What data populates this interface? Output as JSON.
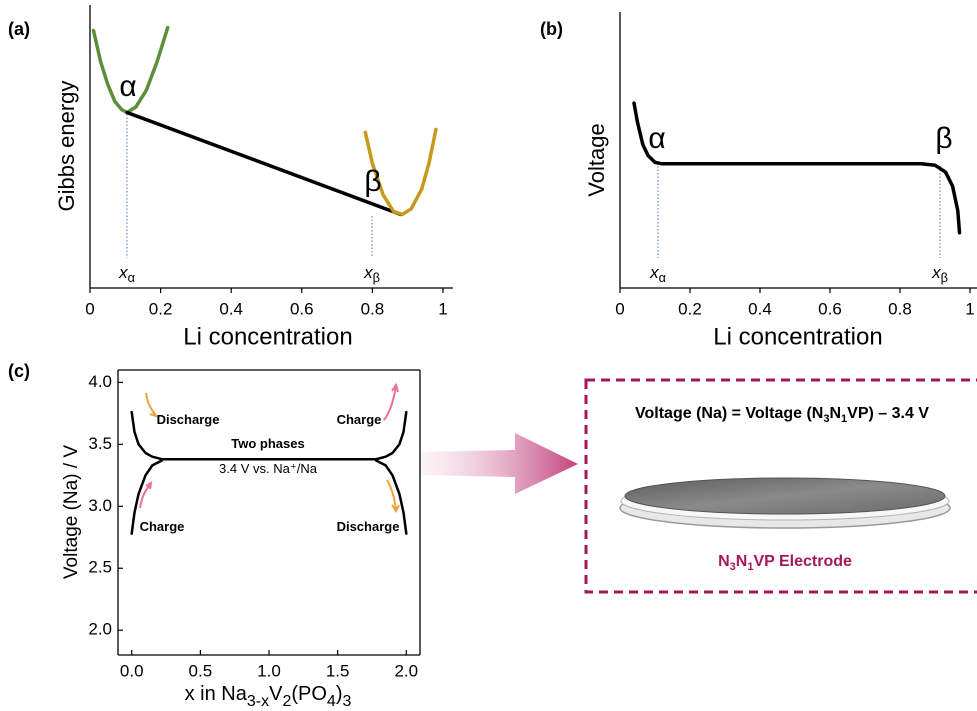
{
  "chart_data": [
    {
      "type": "line",
      "panel_label": "(a)",
      "xlabel": "Li concentration",
      "ylabel": "Gibbs energy",
      "xlim": [
        0,
        1
      ],
      "ylim": [
        0,
        1
      ],
      "xticks": [
        0,
        0.2,
        0.4,
        0.6,
        0.8,
        1
      ],
      "series": [
        {
          "color": "#5b8f3a",
          "x": [
            0.01,
            0.03,
            0.05,
            0.07,
            0.09,
            0.105,
            0.13,
            0.16,
            0.19,
            0.22
          ],
          "values": [
            0.91,
            0.8,
            0.72,
            0.66,
            0.63,
            0.62,
            0.64,
            0.7,
            0.8,
            0.92
          ]
        },
        {
          "color": "#000000",
          "x": [
            0.105,
            0.88
          ],
          "values": [
            0.62,
            0.26
          ]
        },
        {
          "color": "#c8991a",
          "x": [
            0.78,
            0.8,
            0.83,
            0.86,
            0.885,
            0.91,
            0.94,
            0.96,
            0.98
          ],
          "values": [
            0.55,
            0.44,
            0.33,
            0.27,
            0.26,
            0.28,
            0.35,
            0.44,
            0.56
          ]
        }
      ],
      "annotations": [
        {
          "text": "α"
        },
        {
          "text": "β"
        },
        {
          "text": "x",
          "subscript": "α"
        },
        {
          "text": "x",
          "subscript": "β"
        }
      ]
    },
    {
      "type": "line",
      "panel_label": "(b)",
      "xlabel": "Li concentration",
      "ylabel": "Voltage",
      "xlim": [
        0,
        1
      ],
      "ylim": [
        0,
        1
      ],
      "xticks": [
        0,
        0.2,
        0.4,
        0.6,
        0.8,
        1
      ],
      "series": [
        {
          "color": "#000000",
          "x": [
            0.04,
            0.05,
            0.065,
            0.08,
            0.1,
            0.12,
            0.86,
            0.9,
            0.93,
            0.95,
            0.965,
            0.97
          ],
          "values": [
            0.67,
            0.6,
            0.52,
            0.48,
            0.455,
            0.45,
            0.45,
            0.445,
            0.42,
            0.37,
            0.28,
            0.2
          ]
        }
      ],
      "annotations": [
        {
          "text": "α"
        },
        {
          "text": "β"
        },
        {
          "text": "x",
          "subscript": "α"
        },
        {
          "text": "x",
          "subscript": "β"
        }
      ]
    },
    {
      "type": "line",
      "panel_label": "(c)",
      "ylabel": "Voltage (Na) / V",
      "xlabel": [
        {
          "text": "x in Na"
        },
        {
          "text": "3-x",
          "sub": true
        },
        {
          "text": "V"
        },
        {
          "text": "2",
          "sub": true
        },
        {
          "text": "(PO"
        },
        {
          "text": "4",
          "sub": true
        },
        {
          "text": ")"
        },
        {
          "text": "3",
          "sub": true
        }
      ],
      "xlim": [
        -0.1,
        2.1
      ],
      "ylim": [
        1.8,
        4.1
      ],
      "xticks": [
        {
          "value": 0,
          "label": "0.0"
        },
        {
          "value": 0.5,
          "label": "0.5"
        },
        {
          "value": 1,
          "label": "1.0"
        },
        {
          "value": 1.5,
          "label": "1.5"
        },
        {
          "value": 2,
          "label": "2.0"
        }
      ],
      "yticks": [
        {
          "value": 2,
          "label": "2.0"
        },
        {
          "value": 2.5,
          "label": "2.5"
        },
        {
          "value": 3,
          "label": "3.0"
        },
        {
          "value": 3.5,
          "label": "3.5"
        },
        {
          "value": 4,
          "label": "4.0"
        }
      ],
      "series": [
        {
          "color": "#000000",
          "x": [
            0.0,
            0.02,
            0.05,
            0.1,
            0.15,
            0.22
          ],
          "values": [
            3.76,
            3.6,
            3.5,
            3.43,
            3.4,
            3.38
          ]
        },
        {
          "color": "#000000",
          "x": [
            0.0,
            0.02,
            0.05,
            0.1,
            0.15,
            0.22
          ],
          "values": [
            2.78,
            2.95,
            3.1,
            3.25,
            3.33,
            3.37
          ]
        },
        {
          "color": "#000000",
          "x": [
            0.22,
            1.78
          ],
          "values": [
            3.38,
            3.38
          ]
        },
        {
          "color": "#000000",
          "x": [
            1.78,
            1.85,
            1.9,
            1.95,
            1.98,
            2.0
          ],
          "values": [
            3.38,
            3.4,
            3.43,
            3.5,
            3.6,
            3.76
          ]
        },
        {
          "color": "#000000",
          "x": [
            1.78,
            1.85,
            1.9,
            1.95,
            1.98,
            2.0
          ],
          "values": [
            3.37,
            3.33,
            3.25,
            3.1,
            2.95,
            2.78
          ]
        }
      ],
      "annotations": [
        {
          "text": "Discharge"
        },
        {
          "text": "Two phases"
        },
        {
          "text": "3.4 V vs. Na⁺/Na"
        },
        {
          "text": "Charge"
        },
        {
          "text": "Charge"
        },
        {
          "text": "Discharge"
        }
      ]
    }
  ],
  "diagram": {
    "formula": [
      {
        "text": "Voltage (Na) = Voltage (N"
      },
      {
        "text": "3",
        "sub": true
      },
      {
        "text": "N"
      },
      {
        "text": "1",
        "sub": true
      },
      {
        "text": "VP) – 3.4 V"
      }
    ],
    "electrode_label": [
      {
        "text": "N"
      },
      {
        "text": "3",
        "sub": true
      },
      {
        "text": "N"
      },
      {
        "text": "1",
        "sub": true
      },
      {
        "text": "VP Electrode"
      }
    ]
  }
}
